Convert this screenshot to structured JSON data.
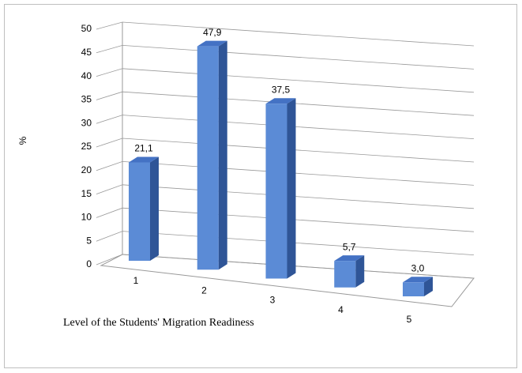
{
  "chart_data": {
    "type": "bar3d",
    "x_label": "Level of the Students' Migration Readiness",
    "y_label": "%",
    "categories": [
      "1",
      "2",
      "3",
      "4",
      "5"
    ],
    "values": [
      21.1,
      47.9,
      37.5,
      5.7,
      3.0
    ],
    "value_labels": [
      "21,1",
      "47,9",
      "37,5",
      "5,7",
      "3,0"
    ],
    "color": "#5b8bd6",
    "ylim": [
      0,
      50
    ],
    "yticks": [
      0,
      5,
      10,
      15,
      20,
      25,
      30,
      35,
      40,
      45,
      50
    ],
    "grid": true
  }
}
